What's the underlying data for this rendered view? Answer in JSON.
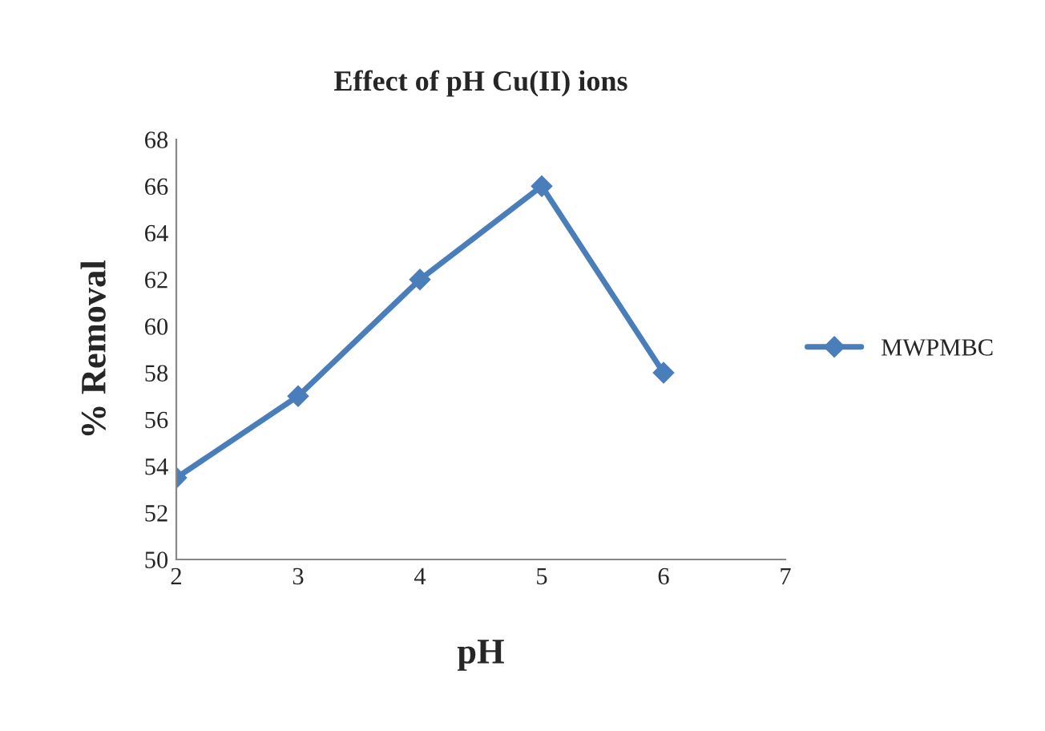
{
  "chart_data": {
    "type": "line",
    "title": "Effect of pH Cu(II) ions",
    "xlabel": "pH",
    "ylabel": "% Removal",
    "x": [
      2,
      3,
      4,
      5,
      6
    ],
    "series": [
      {
        "name": "MWPMBC",
        "color": "#4a7ebb",
        "values": [
          53.5,
          57,
          62,
          66,
          58
        ]
      }
    ],
    "xlim": [
      2,
      7
    ],
    "xticks": [
      2,
      3,
      4,
      5,
      6,
      7
    ],
    "ylim": [
      50,
      68
    ],
    "yticks": [
      50,
      52,
      54,
      56,
      58,
      60,
      62,
      64,
      66,
      68
    ],
    "marker": "diamond",
    "line_style": "solid",
    "grid": false,
    "legend": "right"
  }
}
